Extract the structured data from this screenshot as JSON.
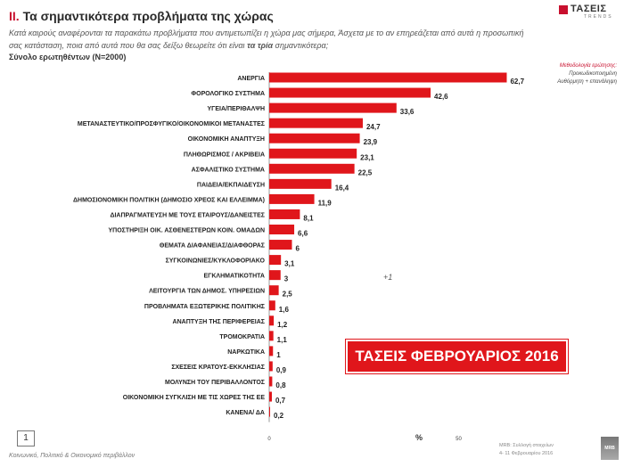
{
  "header": {
    "section_num": "II.",
    "title": "Τα σημαντικότερα προβλήματα της χώρας",
    "subtitle_a": "Κατά καιρούς αναφέρονται τα παρακάτω προβλήματα που αντιμετωπίζει η χώρα μας σήμερα, Άσχετα με το αν επηρεάζεται από αυτά η προσωπική σας κατάσταση, ποια από αυτά που θα σας δείξω θεωρείτε ότι είναι ",
    "subtitle_b": "τα τρία",
    "subtitle_c": " σημαντικότερα;",
    "base": "Σύνολο ερωτηθέντων (N=2000)"
  },
  "logo": {
    "brand": "ΤΑΣΕΙΣ",
    "tagline": "TRENDS"
  },
  "method": {
    "title": "Μεθοδολογία ερώτησης:",
    "line1": "Προκωδικοποιημένη",
    "line2": "Αυθόρμητη + επανάληψη"
  },
  "banner": "ΤΑΣΕΙΣ ΦΕΒΡΟΥΑΡΙΟΣ 2016",
  "note": "+1",
  "footer": {
    "page": "1",
    "left": "Κοινωνικό, Πολιτικό & Οικονομικό περιβάλλον",
    "source1": "MRB: Συλλογή στοιχείων",
    "source2": "4- 11 Φεβρουαρίου 2016",
    "mrb": "MRB"
  },
  "colors": {
    "bar": "#e0161b",
    "accent": "#c8102e"
  },
  "chart_data": {
    "type": "bar",
    "orientation": "horizontal",
    "categories": [
      "ΑΝΕΡΓΙΑ",
      "ΦΟΡΟΛΟΓΙΚΟ ΣΥΣΤΗΜΑ",
      "ΥΓΕΙΑ/ΠΕΡΙΘΑΛΨΗ",
      "ΜΕΤΑΝΑΣΤΕΥΤΙΚΟ/ΠΡΟΣΦΥΓΙΚΟ/ΟΙΚΟΝΟΜΙΚΟΙ ΜΕΤΑΝΑΣΤΕΣ",
      "ΟΙΚΟΝΟΜΙΚΗ ΑΝΑΠΤΥΞΗ",
      "ΠΛΗΘΩΡΙΣΜΟΣ / ΑΚΡΙΒΕΙΑ",
      "ΑΣΦΑΛΙΣΤΙΚΟ ΣΥΣΤΗΜΑ",
      "ΠΑΙΔΕΙΑ/ΕΚΠΑΙΔΕΥΣΗ",
      "ΔΗΜΟΣΙΟΝΟΜΙΚΗ ΠΟΛΙΤΙΚΗ (ΔΗΜΟΣΙΟ ΧΡΕΟΣ ΚΑΙ ΕΛΛΕΙΜΜΑ)",
      "ΔΙΑΠΡΑΓΜΑΤΕΥΣΗ ΜΕ ΤΟΥΣ ΕΤΑΙΡΟΥΣ/ΔΑΝΕΙΣΤΕΣ",
      "ΥΠΟΣΤΗΡΙΞΗ ΟΙΚ. ΑΣΘΕΝΕΣΤΕΡΩΝ ΚΟΙΝ. ΟΜΑΔΩΝ",
      "ΘΕΜΑΤΑ ΔΙΑΦΑΝΕΙΑΣ/ΔΙΑΦΘΟΡΑΣ",
      "ΣΥΓΚΟΙΝΩΝΙΕΣ/ΚΥΚΛΟΦΟΡΙΑΚΟ",
      "ΕΓΚΛΗΜΑΤΙΚΟΤΗΤΑ",
      "ΛΕΙΤΟΥΡΓΙΑ ΤΩΝ ΔΗΜΟΣ. ΥΠΗΡΕΣΙΩΝ",
      "ΠΡΟΒΛΗΜΑΤΑ ΕΞΩΤΕΡΙΚΗΣ ΠΟΛΙΤΙΚΗΣ",
      "ΑΝΑΠΤΥΞΗ ΤΗΣ ΠΕΡΙΦΕΡΕΙΑΣ",
      "ΤΡΟΜΟΚΡΑΤΙΑ",
      "ΝΑΡΚΩΤΙΚΑ",
      "ΣΧΕΣΕΙΣ ΚΡΑΤΟΥΣ-ΕΚΚΛΗΣΙΑΣ",
      "ΜΟΛΥΝΣΗ ΤΟΥ ΠΕΡΙΒΑΛΛΟΝΤΟΣ",
      "ΟΙΚΟΝΟΜΙΚΗ ΣΥΓΚΛΙΣΗ ΜΕ ΤΙΣ ΧΩΡΕΣ ΤΗΣ ΕΕ",
      "ΚΑΝΕΝΑ/ ΔΑ"
    ],
    "values": [
      62.7,
      42.6,
      33.6,
      24.7,
      23.9,
      23.1,
      22.5,
      16.4,
      11.9,
      8.1,
      6.6,
      6,
      3.1,
      3,
      2.5,
      1.6,
      1.2,
      1.1,
      1,
      0.9,
      0.8,
      0.7,
      0.2
    ],
    "value_labels": [
      "62,7",
      "42,6",
      "33,6",
      "24,7",
      "23,9",
      "23,1",
      "22,5",
      "16,4",
      "11,9",
      "8,1",
      "6,6",
      "6",
      "3,1",
      "3",
      "2,5",
      "1,6",
      "1,2",
      "1,1",
      "1",
      "0,9",
      "0,8",
      "0,7",
      "0,2"
    ],
    "xlim": [
      0,
      100
    ],
    "xticks": [
      "0",
      "50",
      "100"
    ],
    "xlabel": "%",
    "grid": false
  }
}
